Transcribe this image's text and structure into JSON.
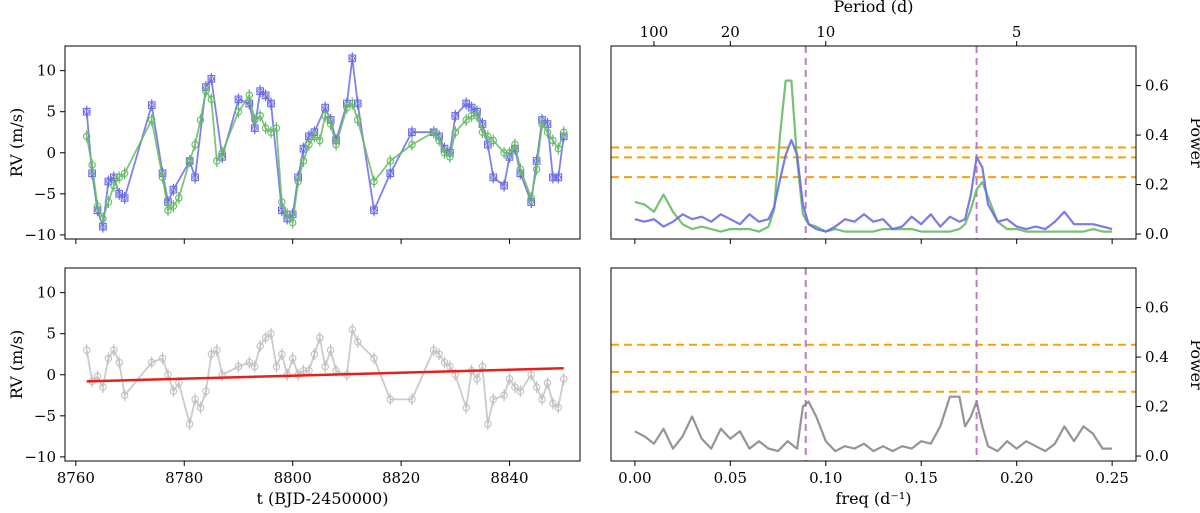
{
  "figure": {
    "background": "#ffffff"
  },
  "chart_data": [
    {
      "type": "line",
      "panel": "rv-top",
      "xlabel": "",
      "ylabel": "RV (m/s)",
      "xlim": [
        8758,
        8853
      ],
      "ylim": [
        -10.5,
        13
      ],
      "xticks": [
        8760,
        8780,
        8800,
        8820,
        8840
      ],
      "yticks": [
        -10,
        -5,
        0,
        5,
        10
      ],
      "show_xtick_labels": false,
      "series": [
        {
          "color": "#6b6be8",
          "marker": "square-circle",
          "x": [
            8762,
            8763,
            8764,
            8765,
            8766,
            8767,
            8768,
            8769,
            8774,
            8776,
            8777,
            8778,
            8781,
            8782,
            8784,
            8785,
            8787,
            8790,
            8792,
            8793,
            8794,
            8795,
            8796,
            8798,
            8799,
            8800,
            8801,
            8802,
            8803,
            8804,
            8806,
            8807,
            8808,
            8810,
            8811,
            8812,
            8815,
            8818,
            8822,
            8826,
            8827,
            8828,
            8829,
            8830,
            8832,
            8833,
            8834,
            8835,
            8836,
            8837,
            8839,
            8840,
            8841,
            8842,
            8844,
            8845,
            8846,
            8847,
            8848,
            8849,
            8850
          ],
          "y": [
            5,
            -2.5,
            -7,
            -9,
            -3.5,
            -3,
            -5,
            -5.5,
            5.8,
            -2.5,
            -6,
            -4.5,
            -1,
            -3,
            8,
            9,
            -0.5,
            6.5,
            6,
            3,
            7.5,
            7,
            6,
            -7,
            -8,
            -7.5,
            -3,
            0.5,
            2,
            2.5,
            5.5,
            4,
            1.5,
            6,
            11.5,
            6,
            -7,
            -2.5,
            2.5,
            2.5,
            2,
            0.5,
            0,
            4.5,
            6,
            5.5,
            5,
            3.5,
            1,
            -3,
            -4,
            -0.5,
            0.5,
            -2.5,
            -6,
            -1,
            4,
            3.5,
            -3,
            -3,
            2
          ]
        },
        {
          "color": "#66bb66",
          "marker": "circle",
          "x": [
            8762,
            8763,
            8764,
            8765,
            8766,
            8767,
            8768,
            8769,
            8774,
            8776,
            8777,
            8778,
            8779,
            8781,
            8782,
            8783,
            8784,
            8785,
            8786,
            8787,
            8790,
            8792,
            8793,
            8794,
            8795,
            8796,
            8797,
            8798,
            8799,
            8800,
            8801,
            8802,
            8803,
            8804,
            8805,
            8806,
            8807,
            8808,
            8810,
            8811,
            8812,
            8815,
            8818,
            8822,
            8826,
            8827,
            8828,
            8829,
            8830,
            8832,
            8833,
            8834,
            8835,
            8836,
            8837,
            8839,
            8840,
            8841,
            8842,
            8844,
            8845,
            8846,
            8847,
            8848,
            8849,
            8850
          ],
          "y": [
            2,
            -1.5,
            -6.5,
            -8,
            -6,
            -4,
            -3,
            -2.5,
            4,
            -3,
            -7,
            -6.5,
            -5.5,
            -1,
            1,
            4,
            7.5,
            6.5,
            -1,
            0,
            5,
            7,
            4,
            4.5,
            3,
            2.5,
            3,
            -6,
            -7.5,
            -8.5,
            -3.5,
            -1,
            1,
            2,
            1.5,
            4.5,
            3.5,
            1,
            5.5,
            6,
            4,
            -3.5,
            -1,
            1,
            2.5,
            1.5,
            0,
            -0.5,
            2.5,
            4,
            4.5,
            4.5,
            2.5,
            2,
            1.5,
            0,
            0,
            1,
            -2,
            -5.5,
            -2,
            3.5,
            2.5,
            1.5,
            0.5,
            2.5
          ]
        }
      ]
    },
    {
      "type": "line",
      "panel": "periodogram-top",
      "xlabel": "",
      "ylabel": "Power",
      "top_axis_label": "Period (d)",
      "top_ticks": [
        {
          "period": 100,
          "label": "100"
        },
        {
          "period": 20,
          "label": "20"
        },
        {
          "period": 10,
          "label": "10"
        },
        {
          "period": 5,
          "label": "5"
        }
      ],
      "xlim": [
        -0.0125,
        0.2625
      ],
      "ylim": [
        -0.02,
        0.76
      ],
      "xticks": [
        0.0,
        0.05,
        0.1,
        0.15,
        0.2,
        0.25
      ],
      "yticks": [
        0.0,
        0.2,
        0.4,
        0.6
      ],
      "ytick_labels": [
        "0.0",
        "0.2",
        "0.4",
        "0.6"
      ],
      "show_xtick_labels": false,
      "hlines": {
        "values": [
          0.23,
          0.31,
          0.35
        ],
        "color": "#f5a10a"
      },
      "vlines": {
        "values": [
          0.0895,
          0.179
        ],
        "color": "#c07ac8"
      },
      "series": [
        {
          "color": "#66bb66",
          "x": [
            0.0,
            0.005,
            0.01,
            0.015,
            0.02,
            0.025,
            0.03,
            0.035,
            0.04,
            0.045,
            0.05,
            0.055,
            0.06,
            0.065,
            0.07,
            0.073,
            0.076,
            0.079,
            0.082,
            0.085,
            0.088,
            0.091,
            0.095,
            0.1,
            0.105,
            0.11,
            0.115,
            0.12,
            0.125,
            0.13,
            0.135,
            0.14,
            0.145,
            0.15,
            0.155,
            0.16,
            0.165,
            0.17,
            0.173,
            0.176,
            0.179,
            0.182,
            0.185,
            0.19,
            0.195,
            0.2,
            0.205,
            0.21,
            0.215,
            0.22,
            0.225,
            0.23,
            0.235,
            0.24,
            0.245,
            0.25
          ],
          "y": [
            0.13,
            0.12,
            0.09,
            0.16,
            0.09,
            0.04,
            0.02,
            0.03,
            0.02,
            0.01,
            0.02,
            0.02,
            0.02,
            0.01,
            0.03,
            0.1,
            0.4,
            0.62,
            0.62,
            0.3,
            0.08,
            0.04,
            0.03,
            0.01,
            0.02,
            0.01,
            0.01,
            0.01,
            0.01,
            0.02,
            0.02,
            0.02,
            0.02,
            0.01,
            0.01,
            0.01,
            0.01,
            0.02,
            0.04,
            0.1,
            0.18,
            0.21,
            0.15,
            0.05,
            0.02,
            0.02,
            0.01,
            0.01,
            0.01,
            0.01,
            0.01,
            0.01,
            0.01,
            0.02,
            0.01,
            0.01
          ]
        },
        {
          "color": "#6b6be8",
          "x": [
            0.0,
            0.005,
            0.01,
            0.015,
            0.02,
            0.025,
            0.03,
            0.035,
            0.04,
            0.045,
            0.05,
            0.055,
            0.06,
            0.065,
            0.07,
            0.073,
            0.076,
            0.079,
            0.082,
            0.085,
            0.088,
            0.091,
            0.095,
            0.1,
            0.105,
            0.11,
            0.115,
            0.12,
            0.125,
            0.13,
            0.135,
            0.14,
            0.145,
            0.15,
            0.155,
            0.16,
            0.165,
            0.17,
            0.173,
            0.176,
            0.179,
            0.182,
            0.185,
            0.19,
            0.195,
            0.2,
            0.205,
            0.21,
            0.215,
            0.22,
            0.225,
            0.23,
            0.235,
            0.24,
            0.245,
            0.25
          ],
          "y": [
            0.06,
            0.05,
            0.06,
            0.03,
            0.05,
            0.08,
            0.06,
            0.07,
            0.05,
            0.08,
            0.06,
            0.04,
            0.08,
            0.05,
            0.06,
            0.11,
            0.22,
            0.32,
            0.38,
            0.32,
            0.12,
            0.04,
            0.02,
            0.01,
            0.03,
            0.06,
            0.05,
            0.08,
            0.05,
            0.06,
            0.02,
            0.03,
            0.07,
            0.04,
            0.08,
            0.03,
            0.07,
            0.05,
            0.06,
            0.16,
            0.31,
            0.27,
            0.12,
            0.05,
            0.06,
            0.03,
            0.02,
            0.03,
            0.02,
            0.05,
            0.09,
            0.04,
            0.04,
            0.04,
            0.03,
            0.02
          ]
        }
      ]
    },
    {
      "type": "line",
      "panel": "rv-bottom",
      "xlabel": "t (BJD-2450000)",
      "ylabel": "RV (m/s)",
      "xlim": [
        8758,
        8853
      ],
      "ylim": [
        -10.5,
        13
      ],
      "xticks": [
        8760,
        8780,
        8800,
        8820,
        8840
      ],
      "yticks": [
        -10,
        -5,
        0,
        5,
        10
      ],
      "show_xtick_labels": true,
      "trend": {
        "x": [
          8762,
          8850
        ],
        "y": [
          -0.8,
          0.8
        ],
        "color": "#e8201c"
      },
      "series": [
        {
          "color": "#c2c2c2",
          "marker": "circle",
          "x": [
            8762,
            8763,
            8764,
            8765,
            8766,
            8767,
            8768,
            8769,
            8774,
            8776,
            8777,
            8778,
            8779,
            8781,
            8782,
            8783,
            8784,
            8785,
            8786,
            8787,
            8790,
            8792,
            8793,
            8794,
            8795,
            8796,
            8797,
            8798,
            8799,
            8800,
            8801,
            8802,
            8803,
            8804,
            8805,
            8806,
            8807,
            8808,
            8810,
            8811,
            8812,
            8815,
            8818,
            8822,
            8826,
            8827,
            8828,
            8829,
            8830,
            8832,
            8833,
            8834,
            8835,
            8836,
            8837,
            8839,
            8840,
            8841,
            8842,
            8844,
            8845,
            8846,
            8847,
            8848,
            8849,
            8850
          ],
          "y": [
            3,
            -0.8,
            -0.2,
            -1.5,
            2,
            3,
            1.5,
            -2.5,
            1.5,
            2,
            0,
            -2,
            -1,
            -6,
            -3,
            -4,
            -2,
            2.5,
            3,
            0,
            1,
            1.5,
            1,
            3.5,
            4.5,
            5,
            1,
            2.5,
            0,
            2,
            0,
            0.5,
            0.5,
            2.5,
            4.5,
            1,
            3,
            0.5,
            0,
            5.5,
            4,
            2,
            -3,
            -3,
            3,
            2.5,
            1.5,
            1,
            0,
            -4,
            0.5,
            -0.5,
            1,
            -6,
            -3,
            -2.5,
            -0.5,
            -1.5,
            -2,
            0,
            -1.5,
            -3,
            -1,
            -3.5,
            -4,
            -0.5
          ]
        }
      ]
    },
    {
      "type": "line",
      "panel": "periodogram-bottom",
      "xlabel": "freq (d⁻¹)",
      "ylabel": "Power",
      "xlim": [
        -0.0125,
        0.2625
      ],
      "ylim": [
        -0.02,
        0.76
      ],
      "xticks": [
        0.0,
        0.05,
        0.1,
        0.15,
        0.2,
        0.25
      ],
      "xtick_labels": [
        "0.00",
        "0.05",
        "0.10",
        "0.15",
        "0.20",
        "0.25"
      ],
      "yticks": [
        0.0,
        0.2,
        0.4,
        0.6
      ],
      "ytick_labels": [
        "0.0",
        "0.2",
        "0.4",
        "0.6"
      ],
      "show_xtick_labels": true,
      "hlines": {
        "values": [
          0.26,
          0.34,
          0.45
        ],
        "color": "#f5a10a"
      },
      "vlines": {
        "values": [
          0.0895,
          0.179
        ],
        "color": "#c07ac8"
      },
      "series": [
        {
          "color": "#888888",
          "x": [
            0.0,
            0.005,
            0.01,
            0.015,
            0.02,
            0.025,
            0.03,
            0.035,
            0.04,
            0.045,
            0.05,
            0.055,
            0.06,
            0.065,
            0.07,
            0.075,
            0.08,
            0.085,
            0.088,
            0.091,
            0.095,
            0.1,
            0.105,
            0.11,
            0.115,
            0.12,
            0.125,
            0.13,
            0.135,
            0.14,
            0.145,
            0.15,
            0.155,
            0.16,
            0.165,
            0.17,
            0.173,
            0.176,
            0.179,
            0.182,
            0.185,
            0.19,
            0.195,
            0.2,
            0.205,
            0.21,
            0.215,
            0.22,
            0.225,
            0.23,
            0.235,
            0.24,
            0.245,
            0.25
          ],
          "y": [
            0.1,
            0.08,
            0.05,
            0.11,
            0.03,
            0.08,
            0.16,
            0.07,
            0.03,
            0.11,
            0.07,
            0.1,
            0.03,
            0.06,
            0.03,
            0.02,
            0.06,
            0.03,
            0.2,
            0.22,
            0.16,
            0.06,
            0.02,
            0.04,
            0.03,
            0.05,
            0.02,
            0.04,
            0.02,
            0.04,
            0.03,
            0.06,
            0.05,
            0.12,
            0.24,
            0.24,
            0.12,
            0.16,
            0.22,
            0.12,
            0.04,
            0.02,
            0.06,
            0.03,
            0.06,
            0.04,
            0.02,
            0.05,
            0.12,
            0.06,
            0.12,
            0.09,
            0.03,
            0.03
          ]
        }
      ]
    }
  ]
}
